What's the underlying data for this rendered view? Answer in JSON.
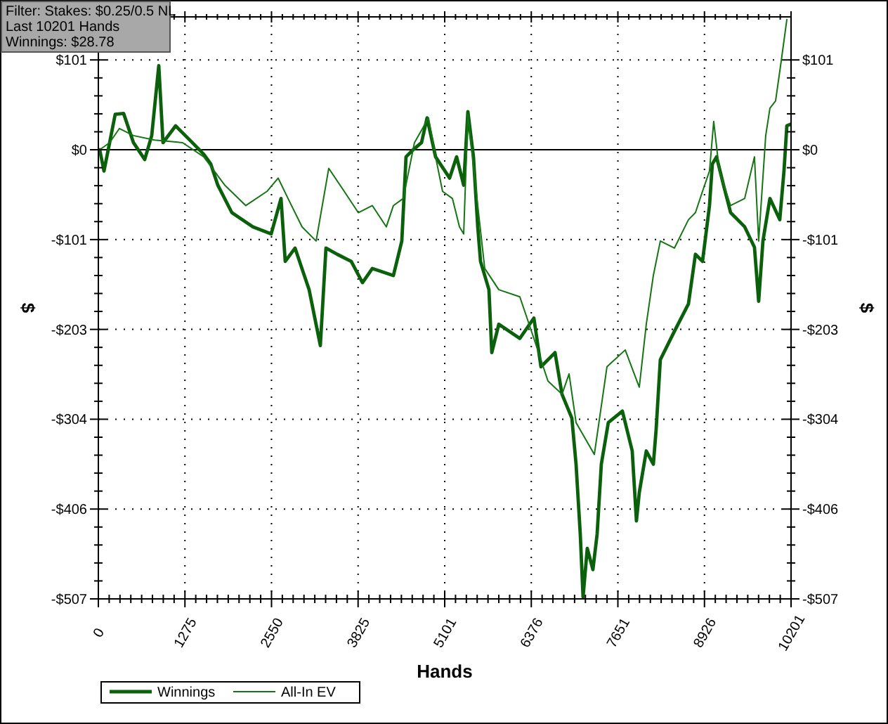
{
  "chart_data": {
    "type": "line",
    "xlabel": "Hands",
    "ylabel": "$",
    "y2label": "$",
    "annotations": [
      "Filter: Stakes: $0.25/0.5 NL",
      "Last 10201 Hands",
      "Winnings: $28.78"
    ],
    "xlim": [
      0,
      10201
    ],
    "xticks": [
      0,
      1275,
      2550,
      3825,
      {
        "value": 5100.5,
        "label": "5101"
      },
      {
        "value": 6375.6,
        "label": "6376"
      },
      {
        "value": 7650.8,
        "label": "7651"
      },
      {
        "value": 8925.9,
        "label": "8926"
      },
      10201
    ],
    "ylim": [
      -507,
      150
    ],
    "yticks": [
      {
        "value": -507,
        "label": "-$507"
      },
      {
        "value": -405.6,
        "label": "-$406"
      },
      {
        "value": -304.2,
        "label": "-$304"
      },
      {
        "value": -202.8,
        "label": "-$203"
      },
      {
        "value": -101.4,
        "label": "-$101"
      },
      {
        "value": 0,
        "label": "$0"
      },
      {
        "value": 101.4,
        "label": "$101"
      }
    ],
    "y2lim": [
      -507,
      150
    ],
    "y2ticks": [
      {
        "value": -507,
        "label": "-$507"
      },
      {
        "value": -405.6,
        "label": "-$406"
      },
      {
        "value": -304.2,
        "label": "-$304"
      },
      {
        "value": -202.8,
        "label": "-$203"
      },
      {
        "value": -101.4,
        "label": "-$101"
      },
      {
        "value": 0,
        "label": "$0"
      },
      {
        "value": 101.4,
        "label": "$101"
      }
    ],
    "grid": true,
    "legend": "bottom",
    "line_style": "solid",
    "ref_lines": [
      {
        "axis": "y",
        "value": 0,
        "color": "#000000"
      }
    ],
    "series": [
      {
        "name": "Winnings",
        "color": "#0b600b",
        "x": [
          20,
          83,
          166,
          248,
          372,
          517,
          683,
          786,
          890,
          952,
          1138,
          1345,
          1552,
          1655,
          1759,
          1966,
          2276,
          2545,
          2690,
          2752,
          2897,
          3104,
          3269,
          3352,
          3517,
          3724,
          3890,
          4035,
          4345,
          4469,
          4531,
          4635,
          4759,
          4841,
          4966,
          5173,
          5276,
          5380,
          5442,
          5524,
          5587,
          5628,
          5752,
          5794,
          5897,
          6207,
          6414,
          6518,
          6725,
          6828,
          6973,
          7035,
          7097,
          7138,
          7200,
          7283,
          7345,
          7407,
          7510,
          7717,
          7862,
          7924,
          7966,
          8069,
          8173,
          8214,
          8276,
          8483,
          8690,
          8793,
          8897,
          9000,
          9042,
          9104,
          9207,
          9311,
          9518,
          9662,
          9724,
          9787,
          9890,
          10035,
          10097,
          10139,
          10201
        ],
        "values": [
          0,
          -24,
          8,
          40,
          41,
          8,
          -11,
          16,
          95,
          8,
          27,
          11,
          -5,
          -16,
          -40,
          -71,
          -87,
          -95,
          -55,
          -126,
          -111,
          -158,
          -221,
          -111,
          -118,
          -126,
          -150,
          -134,
          -142,
          -103,
          -8,
          0,
          8,
          36,
          -8,
          -32,
          -8,
          -40,
          43,
          -8,
          -87,
          -126,
          -158,
          -229,
          -197,
          -213,
          -190,
          -245,
          -229,
          -276,
          -303,
          -355,
          -434,
          -505,
          -450,
          -474,
          -434,
          -355,
          -308,
          -295,
          -340,
          -419,
          -387,
          -340,
          -355,
          -316,
          -237,
          -205,
          -174,
          -118,
          -126,
          -63,
          -16,
          -8,
          -40,
          -71,
          -87,
          -110,
          -171,
          -103,
          -55,
          -79,
          -24,
          27,
          29
        ]
      },
      {
        "name": "All-In EV",
        "color": "#137513",
        "x": [
          20,
          166,
          310,
          517,
          828,
          1241,
          1552,
          1862,
          2172,
          2483,
          2648,
          2793,
          3000,
          3207,
          3393,
          3621,
          3828,
          4035,
          4241,
          4345,
          4490,
          4655,
          4862,
          4966,
          5069,
          5214,
          5318,
          5380,
          5442,
          5587,
          5690,
          5897,
          6207,
          6414,
          6621,
          6828,
          6932,
          7035,
          7304,
          7490,
          7759,
          7966,
          8069,
          8173,
          8276,
          8483,
          8690,
          8793,
          8897,
          9000,
          9062,
          9145,
          9311,
          9518,
          9662,
          9724,
          9828,
          9890,
          9973,
          10056,
          10139
        ],
        "values": [
          0,
          8,
          24,
          16,
          11,
          8,
          -8,
          -40,
          -63,
          -47,
          -32,
          -55,
          -87,
          -103,
          -21,
          -47,
          -71,
          -63,
          -87,
          -63,
          -55,
          8,
          36,
          -8,
          -47,
          -55,
          -87,
          -95,
          40,
          -63,
          -134,
          -158,
          -166,
          -213,
          -261,
          -276,
          -253,
          -308,
          -344,
          -245,
          -226,
          -268,
          -197,
          -142,
          -103,
          -111,
          -79,
          -71,
          -47,
          -24,
          32,
          -24,
          -63,
          -55,
          -8,
          -103,
          16,
          47,
          55,
          100,
          147
        ]
      }
    ]
  }
}
